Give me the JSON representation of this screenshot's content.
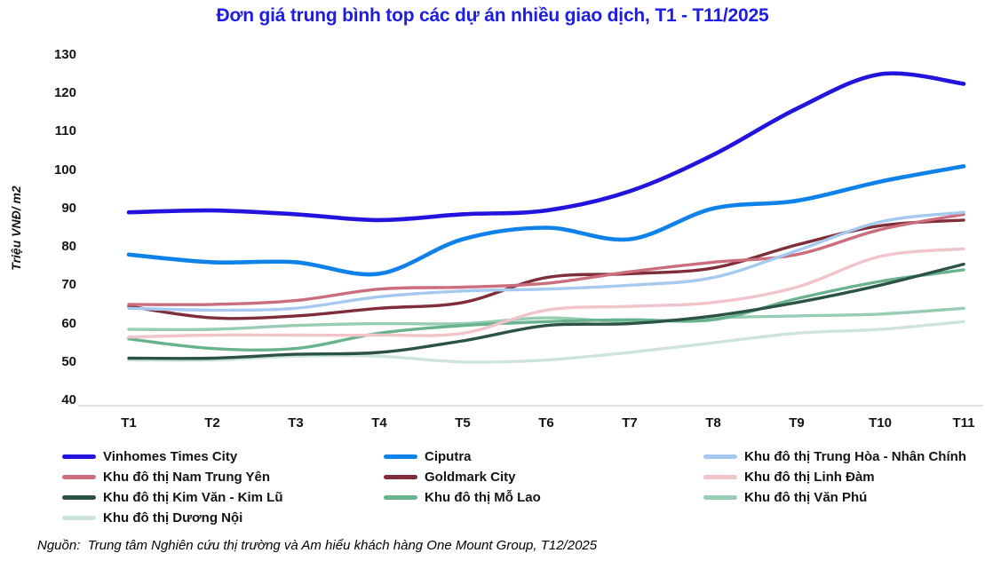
{
  "title": "Đơn giá trung bình top các dự án nhiều giao dịch, T1 - T11/2025",
  "source": "Nguồn:  Trung tâm Nghiên cứu thị trường và Am hiểu khách hàng One Mount Group, T12/2025",
  "colors": {
    "title": "#1d1de3",
    "axis_line": "#d9d9d9",
    "tick_text": "#141414"
  },
  "chart_data": {
    "type": "line",
    "x": [
      "T1",
      "T2",
      "T3",
      "T4",
      "T5",
      "T6",
      "T7",
      "T8",
      "T9",
      "T10",
      "T11"
    ],
    "ylabel": "Triệu VNĐ/ m2",
    "ylim": [
      40,
      130
    ],
    "yticks": [
      40,
      50,
      60,
      70,
      80,
      90,
      100,
      110,
      120,
      130
    ],
    "grid": false,
    "legend_position": "bottom",
    "series": [
      {
        "name": "Vinhomes Times City",
        "color": "#2214dd",
        "thick": true,
        "values": [
          89,
          89.5,
          88.5,
          87,
          88.5,
          89.5,
          94.5,
          104,
          116,
          125,
          122.5
        ]
      },
      {
        "name": "Ciputra",
        "color": "#0e82e8",
        "thick": true,
        "values": [
          78,
          76,
          76,
          73,
          82,
          85,
          82,
          90,
          92,
          97,
          101
        ]
      },
      {
        "name": "Khu đô thị  Trung Hòa - Nhân Chính",
        "color": "#a6c9f0",
        "thick": false,
        "values": [
          64,
          63.5,
          64,
          67,
          68.5,
          69,
          70,
          72,
          79,
          86.5,
          89
        ]
      },
      {
        "name": "Khu đô thị Nam Trung Yên",
        "color": "#cb6d7c",
        "thick": false,
        "values": [
          65,
          65,
          66,
          69,
          69.5,
          70.5,
          73.5,
          76,
          78,
          84.5,
          88.5
        ]
      },
      {
        "name": "Goldmark City",
        "color": "#7f2d38",
        "thick": false,
        "values": [
          64.5,
          61.5,
          62,
          64,
          65.5,
          72,
          73,
          74.5,
          80.5,
          85.5,
          87
        ]
      },
      {
        "name": "Khu đô thị Linh Đàm",
        "color": "#f1c3ca",
        "thick": false,
        "values": [
          56.5,
          57,
          57,
          57,
          57.5,
          63.5,
          64.5,
          65.5,
          69.5,
          77.5,
          79.5
        ]
      },
      {
        "name": "Khu đô thị Kim Văn - Kim Lũ",
        "color": "#2c5245",
        "thick": false,
        "values": [
          51,
          51,
          52,
          52.5,
          55.5,
          59.5,
          60,
          62,
          65.5,
          70,
          75.5
        ]
      },
      {
        "name": "Khu đô thị Mỗ Lao",
        "color": "#69b28e",
        "thick": false,
        "values": [
          56,
          53.5,
          53.5,
          57.5,
          59.5,
          60.5,
          61,
          61,
          66.5,
          71,
          74
        ]
      },
      {
        "name": "Khu đô thị Văn Phú",
        "color": "#97cdb3",
        "thick": false,
        "values": [
          58.5,
          58.5,
          59.5,
          60,
          60,
          61.5,
          60.5,
          61.5,
          62,
          62.5,
          64
        ]
      },
      {
        "name": "Khu đô thị Dương Nội",
        "color": "#cde4da",
        "thick": false,
        "values": [
          50.5,
          50.5,
          51.5,
          51.5,
          50,
          50.5,
          52.5,
          55,
          57.5,
          58.5,
          60.5
        ]
      }
    ]
  }
}
